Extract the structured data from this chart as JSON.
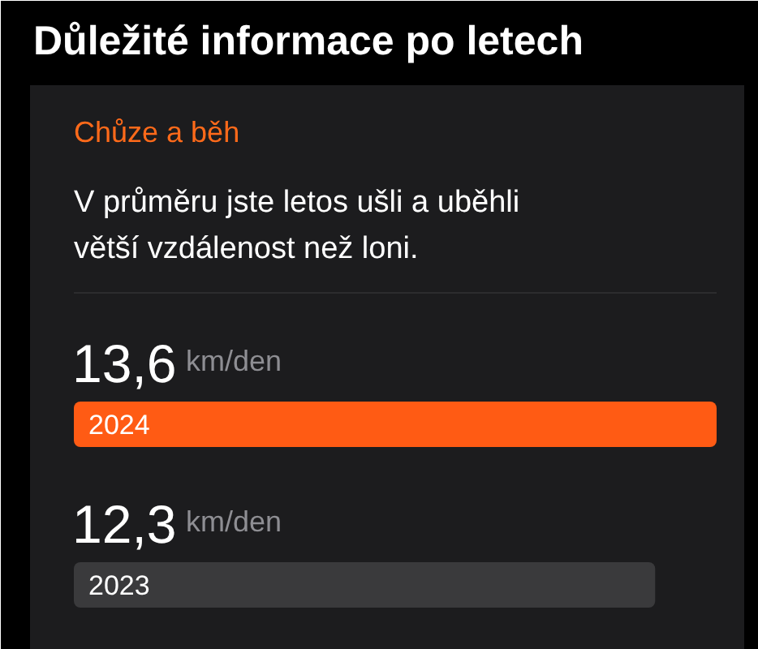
{
  "chart_data": {
    "type": "bar",
    "orientation": "horizontal",
    "title": "Důležité informace po letech",
    "subtitle": "Chůze a běh",
    "annotations": [
      "V průměru jste letos ušli a uběhli\nvětší vzdálenost než loni."
    ],
    "categories": [
      "2024",
      "2023"
    ],
    "values": [
      13.6,
      12.3
    ],
    "colors": [
      "#ff5b14",
      "#3a3a3c"
    ],
    "value_labels": [
      "13,6 km/den",
      "12,3 km/den"
    ],
    "xlim": [
      0,
      13.6
    ]
  }
}
